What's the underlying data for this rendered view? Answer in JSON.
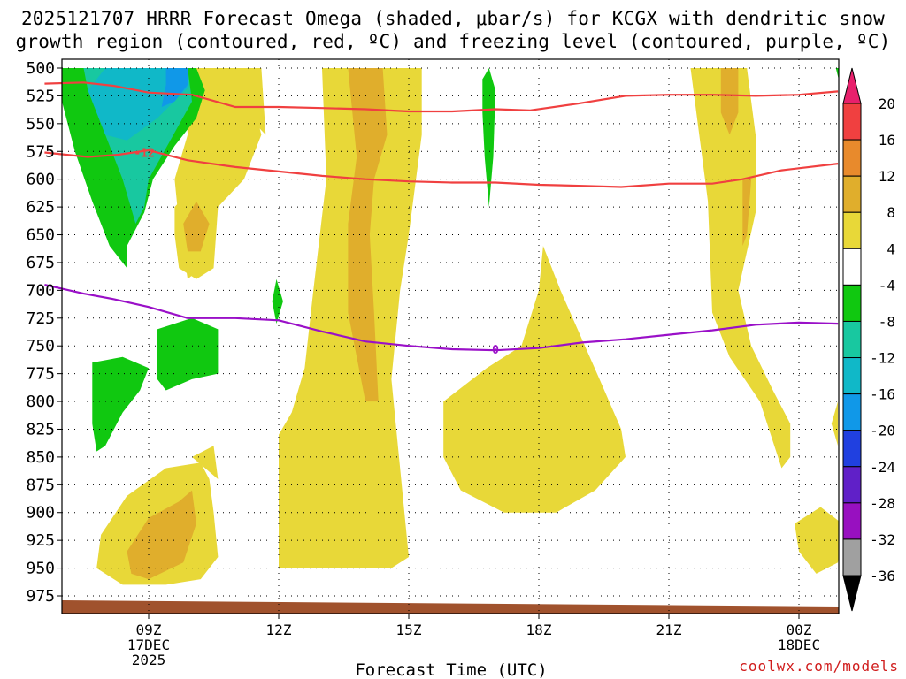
{
  "title": {
    "line1": "2025121707 HRRR Forecast Omega (shaded, μbar/s) for KCGX with dendritic snow",
    "line2": "growth region (contoured, red, ºC) and freezing level (contoured, purple, ºC)"
  },
  "credit": "coolwx.com/models",
  "chart_data": {
    "type": "heatmap",
    "xlabel": "Forecast Time (UTC)",
    "ylabel": "",
    "y_scale": "pressure (hPa), decreasing upward",
    "ylim": [
      987,
      500
    ],
    "xlim_hours_utc": [
      6.6,
      24.9
    ],
    "y_ticks": [
      500,
      525,
      550,
      575,
      600,
      625,
      650,
      675,
      700,
      725,
      750,
      775,
      800,
      825,
      850,
      875,
      900,
      925,
      950,
      975
    ],
    "x_ticks": [
      {
        "hour": 9,
        "label": "09Z",
        "sub1": "17DEC",
        "sub2": "2025"
      },
      {
        "hour": 12,
        "label": "12Z",
        "sub1": "",
        "sub2": ""
      },
      {
        "hour": 15,
        "label": "15Z",
        "sub1": "",
        "sub2": ""
      },
      {
        "hour": 18,
        "label": "18Z",
        "sub1": "",
        "sub2": ""
      },
      {
        "hour": 21,
        "label": "21Z",
        "sub1": "",
        "sub2": ""
      },
      {
        "hour": 24,
        "label": "00Z",
        "sub1": "18DEC",
        "sub2": ""
      }
    ],
    "grid": true,
    "colorbar": {
      "labels": [
        "20",
        "16",
        "12",
        "8",
        "4",
        "-4",
        "-8",
        "-12",
        "-16",
        "-20",
        "-24",
        "-28",
        "-32",
        "-36"
      ],
      "colors_top_to_bottom": [
        "#e8206c",
        "#f04040",
        "#e88a2c",
        "#e0ae2c",
        "#e8d838",
        "#ffffff",
        "#10c810",
        "#18c8a0",
        "#10b8c8",
        "#1098e8",
        "#2040e0",
        "#6020c8",
        "#9810c0",
        "#a0a0a0",
        "#000000"
      ]
    },
    "contours": [
      {
        "name": "-12",
        "color": "#f04040",
        "label": "-12",
        "points": [
          [
            6.6,
            576
          ],
          [
            7.6,
            580
          ],
          [
            8.3,
            578
          ],
          [
            9.0,
            574
          ],
          [
            9.9,
            583
          ],
          [
            11,
            589
          ],
          [
            12,
            593
          ],
          [
            13,
            597
          ],
          [
            14,
            600
          ],
          [
            15,
            602
          ],
          [
            16,
            603
          ],
          [
            17,
            603
          ],
          [
            18,
            605
          ],
          [
            19,
            606
          ],
          [
            19.9,
            607
          ],
          [
            21,
            604
          ],
          [
            22,
            604
          ],
          [
            22.7,
            600
          ],
          [
            23.6,
            592
          ],
          [
            24.9,
            586
          ]
        ]
      },
      {
        "name": "upper",
        "color": "#f04040",
        "label": "",
        "points": [
          [
            6.6,
            514
          ],
          [
            7.5,
            513
          ],
          [
            8.2,
            516
          ],
          [
            9.0,
            522
          ],
          [
            10,
            524
          ],
          [
            11,
            535
          ],
          [
            12,
            535
          ],
          [
            13,
            536
          ],
          [
            14,
            537
          ],
          [
            15,
            539
          ],
          [
            16,
            539
          ],
          [
            17,
            537
          ],
          [
            17.8,
            538
          ],
          [
            18.9,
            532
          ],
          [
            20.0,
            525
          ],
          [
            21,
            524
          ],
          [
            22,
            524
          ],
          [
            23,
            525
          ],
          [
            24,
            524
          ],
          [
            24.9,
            521
          ]
        ]
      },
      {
        "name": "0",
        "color": "#9a10c8",
        "label": "0",
        "points": [
          [
            6.6,
            695
          ],
          [
            7.5,
            703
          ],
          [
            8.2,
            708
          ],
          [
            9.0,
            715
          ],
          [
            9.9,
            725
          ],
          [
            11,
            725
          ],
          [
            12,
            727
          ],
          [
            13,
            737
          ],
          [
            14,
            746
          ],
          [
            15,
            750
          ],
          [
            16,
            753
          ],
          [
            17,
            754
          ],
          [
            18,
            752
          ],
          [
            19,
            747
          ],
          [
            20,
            744
          ],
          [
            21,
            740
          ],
          [
            22,
            736
          ],
          [
            23,
            731
          ],
          [
            24,
            729
          ],
          [
            24.9,
            730
          ]
        ]
      }
    ],
    "shaded_regions": [
      {
        "level": "-8",
        "color": "#10c810",
        "points": [
          [
            7.0,
            500
          ],
          [
            10.1,
            500
          ],
          [
            10.3,
            520
          ],
          [
            10.1,
            545
          ],
          [
            9.6,
            570
          ],
          [
            9.1,
            600
          ],
          [
            8.9,
            630
          ],
          [
            8.5,
            660
          ],
          [
            8.5,
            680
          ],
          [
            8.1,
            660
          ],
          [
            7.7,
            620
          ],
          [
            7.3,
            575
          ],
          [
            7.0,
            530
          ]
        ]
      },
      {
        "level": "-12",
        "color": "#18c8a0",
        "points": [
          [
            7.5,
            500
          ],
          [
            9.9,
            500
          ],
          [
            10.0,
            530
          ],
          [
            9.5,
            565
          ],
          [
            9.0,
            600
          ],
          [
            8.9,
            625
          ],
          [
            8.7,
            640
          ],
          [
            8.4,
            600
          ],
          [
            8.0,
            560
          ],
          [
            7.6,
            520
          ]
        ]
      },
      {
        "level": "-16",
        "color": "#10b8c8",
        "points": [
          [
            7.6,
            520
          ],
          [
            8.0,
            500
          ],
          [
            9.9,
            500
          ],
          [
            9.9,
            518
          ],
          [
            9.2,
            545
          ],
          [
            8.5,
            565
          ],
          [
            8.0,
            560
          ]
        ]
      },
      {
        "level": "-20",
        "color": "#1098e8",
        "points": [
          [
            9.4,
            500
          ],
          [
            9.9,
            500
          ],
          [
            9.9,
            515
          ],
          [
            9.6,
            530
          ],
          [
            9.3,
            535
          ],
          [
            9.4,
            515
          ]
        ]
      }
    ]
  }
}
